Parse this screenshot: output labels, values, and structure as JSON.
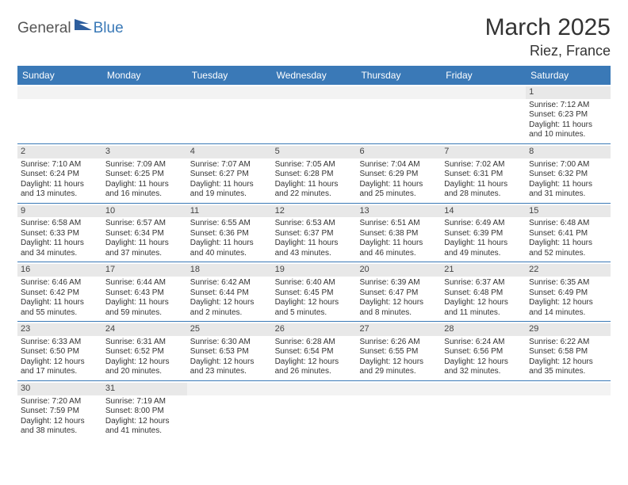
{
  "logo": {
    "part1": "General",
    "part2": "Blue"
  },
  "title": "March 2025",
  "location": "Riez, France",
  "colors": {
    "header_bg": "#3a79b7",
    "header_text": "#ffffff",
    "daynum_bg": "#e8e8e8",
    "row_border": "#3a79b7",
    "text": "#333333"
  },
  "day_names": [
    "Sunday",
    "Monday",
    "Tuesday",
    "Wednesday",
    "Thursday",
    "Friday",
    "Saturday"
  ],
  "weeks": [
    [
      {
        "n": "",
        "blank": true
      },
      {
        "n": "",
        "blank": true
      },
      {
        "n": "",
        "blank": true
      },
      {
        "n": "",
        "blank": true
      },
      {
        "n": "",
        "blank": true
      },
      {
        "n": "",
        "blank": true
      },
      {
        "n": "1",
        "sr": "Sunrise: 7:12 AM",
        "ss": "Sunset: 6:23 PM",
        "dl": "Daylight: 11 hours and 10 minutes."
      }
    ],
    [
      {
        "n": "2",
        "sr": "Sunrise: 7:10 AM",
        "ss": "Sunset: 6:24 PM",
        "dl": "Daylight: 11 hours and 13 minutes."
      },
      {
        "n": "3",
        "sr": "Sunrise: 7:09 AM",
        "ss": "Sunset: 6:25 PM",
        "dl": "Daylight: 11 hours and 16 minutes."
      },
      {
        "n": "4",
        "sr": "Sunrise: 7:07 AM",
        "ss": "Sunset: 6:27 PM",
        "dl": "Daylight: 11 hours and 19 minutes."
      },
      {
        "n": "5",
        "sr": "Sunrise: 7:05 AM",
        "ss": "Sunset: 6:28 PM",
        "dl": "Daylight: 11 hours and 22 minutes."
      },
      {
        "n": "6",
        "sr": "Sunrise: 7:04 AM",
        "ss": "Sunset: 6:29 PM",
        "dl": "Daylight: 11 hours and 25 minutes."
      },
      {
        "n": "7",
        "sr": "Sunrise: 7:02 AM",
        "ss": "Sunset: 6:31 PM",
        "dl": "Daylight: 11 hours and 28 minutes."
      },
      {
        "n": "8",
        "sr": "Sunrise: 7:00 AM",
        "ss": "Sunset: 6:32 PM",
        "dl": "Daylight: 11 hours and 31 minutes."
      }
    ],
    [
      {
        "n": "9",
        "sr": "Sunrise: 6:58 AM",
        "ss": "Sunset: 6:33 PM",
        "dl": "Daylight: 11 hours and 34 minutes."
      },
      {
        "n": "10",
        "sr": "Sunrise: 6:57 AM",
        "ss": "Sunset: 6:34 PM",
        "dl": "Daylight: 11 hours and 37 minutes."
      },
      {
        "n": "11",
        "sr": "Sunrise: 6:55 AM",
        "ss": "Sunset: 6:36 PM",
        "dl": "Daylight: 11 hours and 40 minutes."
      },
      {
        "n": "12",
        "sr": "Sunrise: 6:53 AM",
        "ss": "Sunset: 6:37 PM",
        "dl": "Daylight: 11 hours and 43 minutes."
      },
      {
        "n": "13",
        "sr": "Sunrise: 6:51 AM",
        "ss": "Sunset: 6:38 PM",
        "dl": "Daylight: 11 hours and 46 minutes."
      },
      {
        "n": "14",
        "sr": "Sunrise: 6:49 AM",
        "ss": "Sunset: 6:39 PM",
        "dl": "Daylight: 11 hours and 49 minutes."
      },
      {
        "n": "15",
        "sr": "Sunrise: 6:48 AM",
        "ss": "Sunset: 6:41 PM",
        "dl": "Daylight: 11 hours and 52 minutes."
      }
    ],
    [
      {
        "n": "16",
        "sr": "Sunrise: 6:46 AM",
        "ss": "Sunset: 6:42 PM",
        "dl": "Daylight: 11 hours and 55 minutes."
      },
      {
        "n": "17",
        "sr": "Sunrise: 6:44 AM",
        "ss": "Sunset: 6:43 PM",
        "dl": "Daylight: 11 hours and 59 minutes."
      },
      {
        "n": "18",
        "sr": "Sunrise: 6:42 AM",
        "ss": "Sunset: 6:44 PM",
        "dl": "Daylight: 12 hours and 2 minutes."
      },
      {
        "n": "19",
        "sr": "Sunrise: 6:40 AM",
        "ss": "Sunset: 6:45 PM",
        "dl": "Daylight: 12 hours and 5 minutes."
      },
      {
        "n": "20",
        "sr": "Sunrise: 6:39 AM",
        "ss": "Sunset: 6:47 PM",
        "dl": "Daylight: 12 hours and 8 minutes."
      },
      {
        "n": "21",
        "sr": "Sunrise: 6:37 AM",
        "ss": "Sunset: 6:48 PM",
        "dl": "Daylight: 12 hours and 11 minutes."
      },
      {
        "n": "22",
        "sr": "Sunrise: 6:35 AM",
        "ss": "Sunset: 6:49 PM",
        "dl": "Daylight: 12 hours and 14 minutes."
      }
    ],
    [
      {
        "n": "23",
        "sr": "Sunrise: 6:33 AM",
        "ss": "Sunset: 6:50 PM",
        "dl": "Daylight: 12 hours and 17 minutes."
      },
      {
        "n": "24",
        "sr": "Sunrise: 6:31 AM",
        "ss": "Sunset: 6:52 PM",
        "dl": "Daylight: 12 hours and 20 minutes."
      },
      {
        "n": "25",
        "sr": "Sunrise: 6:30 AM",
        "ss": "Sunset: 6:53 PM",
        "dl": "Daylight: 12 hours and 23 minutes."
      },
      {
        "n": "26",
        "sr": "Sunrise: 6:28 AM",
        "ss": "Sunset: 6:54 PM",
        "dl": "Daylight: 12 hours and 26 minutes."
      },
      {
        "n": "27",
        "sr": "Sunrise: 6:26 AM",
        "ss": "Sunset: 6:55 PM",
        "dl": "Daylight: 12 hours and 29 minutes."
      },
      {
        "n": "28",
        "sr": "Sunrise: 6:24 AM",
        "ss": "Sunset: 6:56 PM",
        "dl": "Daylight: 12 hours and 32 minutes."
      },
      {
        "n": "29",
        "sr": "Sunrise: 6:22 AM",
        "ss": "Sunset: 6:58 PM",
        "dl": "Daylight: 12 hours and 35 minutes."
      }
    ],
    [
      {
        "n": "30",
        "sr": "Sunrise: 7:20 AM",
        "ss": "Sunset: 7:59 PM",
        "dl": "Daylight: 12 hours and 38 minutes."
      },
      {
        "n": "31",
        "sr": "Sunrise: 7:19 AM",
        "ss": "Sunset: 8:00 PM",
        "dl": "Daylight: 12 hours and 41 minutes."
      },
      {
        "n": "",
        "blank": true
      },
      {
        "n": "",
        "blank": true
      },
      {
        "n": "",
        "blank": true
      },
      {
        "n": "",
        "blank": true
      },
      {
        "n": "",
        "blank": true
      }
    ]
  ]
}
